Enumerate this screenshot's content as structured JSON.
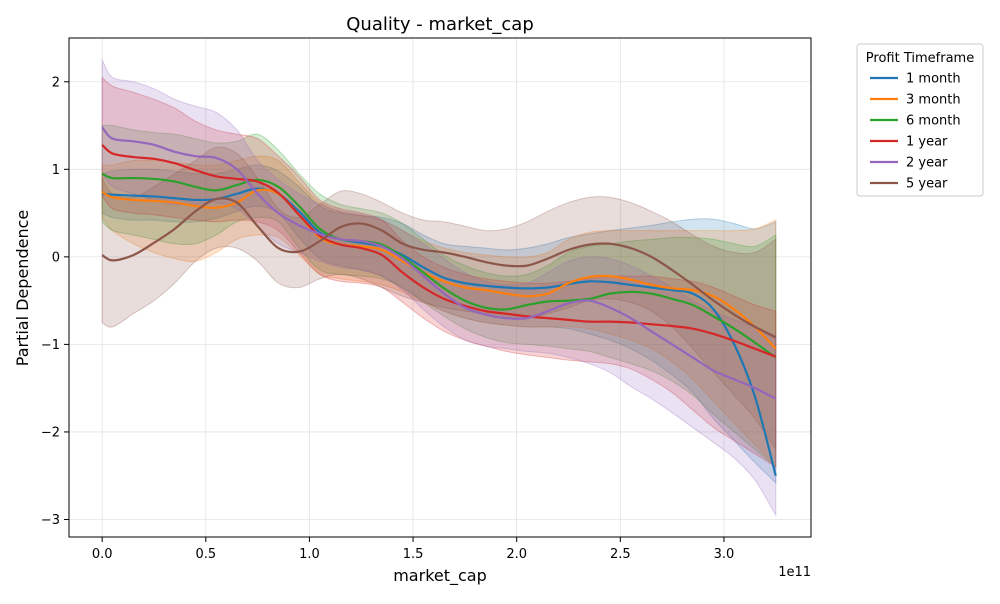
{
  "chart_data": {
    "type": "line",
    "title": "Quality - market_cap",
    "xlabel": "market_cap",
    "ylabel": "Partial Dependence",
    "x_offset_label": "1e11",
    "xlim": [
      -0.16,
      3.42
    ],
    "ylim": [
      -3.2,
      2.5
    ],
    "x_ticks": [
      0.0,
      0.5,
      1.0,
      1.5,
      2.0,
      2.5,
      3.0
    ],
    "x_tick_labels": [
      "0.0",
      "0.5",
      "1.0",
      "1.5",
      "2.0",
      "2.5",
      "3.0"
    ],
    "y_ticks": [
      -3,
      -2,
      -1,
      0,
      1,
      2
    ],
    "y_tick_labels": [
      "−3",
      "−2",
      "−1",
      "0",
      "1",
      "2"
    ],
    "grid": true,
    "legend_title": "Profit Timeframe",
    "legend_position": "outside-right",
    "x": [
      0.0,
      0.05,
      0.15,
      0.25,
      0.35,
      0.45,
      0.55,
      0.65,
      0.75,
      0.85,
      0.95,
      1.05,
      1.15,
      1.25,
      1.35,
      1.45,
      1.55,
      1.65,
      1.75,
      1.85,
      1.95,
      2.05,
      2.15,
      2.25,
      2.35,
      2.45,
      2.55,
      2.65,
      2.75,
      2.85,
      2.95,
      3.05,
      3.15,
      3.25
    ],
    "series": [
      {
        "name": "1 month",
        "color": "#1f77b4",
        "values": [
          0.72,
          0.71,
          0.7,
          0.69,
          0.67,
          0.65,
          0.66,
          0.72,
          0.78,
          0.72,
          0.52,
          0.28,
          0.2,
          0.16,
          0.12,
          0.02,
          -0.12,
          -0.24,
          -0.3,
          -0.33,
          -0.35,
          -0.36,
          -0.35,
          -0.31,
          -0.28,
          -0.29,
          -0.32,
          -0.35,
          -0.38,
          -0.42,
          -0.6,
          -1.0,
          -1.6,
          -2.5
        ],
        "lower": [
          0.5,
          0.45,
          0.42,
          0.42,
          0.4,
          0.4,
          0.44,
          0.52,
          0.58,
          0.5,
          0.22,
          -0.02,
          -0.1,
          -0.15,
          -0.22,
          -0.36,
          -0.5,
          -0.62,
          -0.7,
          -0.75,
          -0.78,
          -0.8,
          -0.8,
          -0.82,
          -0.88,
          -0.95,
          -1.05,
          -1.18,
          -1.35,
          -1.55,
          -1.85,
          -2.1,
          -2.35,
          -2.58
        ],
        "upper": [
          0.95,
          0.98,
          1.0,
          1.0,
          0.98,
          0.95,
          0.95,
          1.0,
          1.05,
          0.98,
          0.8,
          0.58,
          0.5,
          0.47,
          0.45,
          0.38,
          0.25,
          0.15,
          0.12,
          0.1,
          0.08,
          0.1,
          0.15,
          0.22,
          0.26,
          0.3,
          0.33,
          0.36,
          0.4,
          0.43,
          0.43,
          0.38,
          0.32,
          0.4
        ]
      },
      {
        "name": "3 month",
        "color": "#ff7f0e",
        "values": [
          0.74,
          0.68,
          0.65,
          0.64,
          0.62,
          0.58,
          0.56,
          0.62,
          0.76,
          0.72,
          0.48,
          0.22,
          0.14,
          0.12,
          0.08,
          -0.05,
          -0.18,
          -0.28,
          -0.35,
          -0.38,
          -0.42,
          -0.45,
          -0.42,
          -0.3,
          -0.23,
          -0.22,
          -0.26,
          -0.32,
          -0.36,
          -0.38,
          -0.45,
          -0.6,
          -0.8,
          -1.05
        ],
        "lower": [
          0.45,
          0.3,
          0.15,
          0.05,
          -0.02,
          -0.05,
          0.05,
          0.2,
          0.25,
          0.22,
          0.02,
          -0.2,
          -0.25,
          -0.28,
          -0.32,
          -0.4,
          -0.52,
          -0.62,
          -0.7,
          -0.75,
          -0.78,
          -0.8,
          -0.8,
          -0.8,
          -0.82,
          -0.88,
          -0.95,
          -1.05,
          -1.2,
          -1.4,
          -1.65,
          -1.9,
          -2.15,
          -2.4
        ],
        "upper": [
          1.05,
          1.05,
          1.1,
          1.1,
          1.08,
          1.05,
          1.05,
          1.1,
          1.15,
          1.1,
          0.85,
          0.62,
          0.52,
          0.47,
          0.42,
          0.3,
          0.18,
          0.1,
          0.05,
          0.02,
          0.0,
          0.0,
          0.05,
          0.2,
          0.28,
          0.3,
          0.3,
          0.3,
          0.3,
          0.3,
          0.3,
          0.3,
          0.32,
          0.42
        ]
      },
      {
        "name": "6 month",
        "color": "#2ca02c",
        "values": [
          0.95,
          0.9,
          0.9,
          0.89,
          0.86,
          0.8,
          0.76,
          0.82,
          0.88,
          0.8,
          0.58,
          0.32,
          0.2,
          0.18,
          0.14,
          0.0,
          -0.18,
          -0.36,
          -0.5,
          -0.58,
          -0.6,
          -0.55,
          -0.51,
          -0.5,
          -0.48,
          -0.42,
          -0.4,
          -0.42,
          -0.48,
          -0.55,
          -0.68,
          -0.82,
          -0.98,
          -1.15
        ],
        "lower": [
          0.4,
          0.3,
          0.25,
          0.2,
          0.15,
          0.15,
          0.25,
          0.4,
          0.45,
          0.4,
          0.1,
          -0.15,
          -0.2,
          -0.22,
          -0.25,
          -0.35,
          -0.52,
          -0.68,
          -0.82,
          -0.92,
          -0.98,
          -1.0,
          -1.02,
          -1.05,
          -1.08,
          -1.15,
          -1.22,
          -1.3,
          -1.42,
          -1.58,
          -1.8,
          -2.0,
          -2.2,
          -2.4
        ],
        "upper": [
          1.5,
          1.5,
          1.45,
          1.42,
          1.4,
          1.35,
          1.3,
          1.32,
          1.4,
          1.22,
          0.95,
          0.72,
          0.6,
          0.55,
          0.5,
          0.38,
          0.2,
          0.02,
          -0.1,
          -0.18,
          -0.22,
          -0.2,
          -0.1,
          0.05,
          0.12,
          0.15,
          0.18,
          0.2,
          0.22,
          0.22,
          0.2,
          0.15,
          0.12,
          0.25
        ]
      },
      {
        "name": "1 year",
        "color": "#d62728",
        "values": [
          1.28,
          1.18,
          1.14,
          1.12,
          1.07,
          0.99,
          0.92,
          0.89,
          0.86,
          0.73,
          0.48,
          0.24,
          0.14,
          0.1,
          0.02,
          -0.18,
          -0.35,
          -0.48,
          -0.56,
          -0.62,
          -0.65,
          -0.68,
          -0.7,
          -0.72,
          -0.74,
          -0.74,
          -0.75,
          -0.77,
          -0.79,
          -0.82,
          -0.88,
          -0.96,
          -1.05,
          -1.14
        ],
        "lower": [
          0.7,
          0.55,
          0.5,
          0.48,
          0.45,
          0.42,
          0.4,
          0.42,
          0.4,
          0.3,
          0.05,
          -0.2,
          -0.28,
          -0.3,
          -0.35,
          -0.52,
          -0.7,
          -0.85,
          -0.95,
          -1.02,
          -1.08,
          -1.12,
          -1.15,
          -1.18,
          -1.2,
          -1.22,
          -1.28,
          -1.4,
          -1.55,
          -1.75,
          -1.95,
          -2.1,
          -2.25,
          -2.4
        ],
        "upper": [
          2.05,
          1.95,
          1.88,
          1.8,
          1.7,
          1.55,
          1.45,
          1.4,
          1.35,
          1.15,
          0.92,
          0.65,
          0.55,
          0.5,
          0.42,
          0.18,
          0.0,
          -0.12,
          -0.2,
          -0.25,
          -0.28,
          -0.3,
          -0.3,
          -0.28,
          -0.25,
          -0.22,
          -0.22,
          -0.22,
          -0.25,
          -0.28,
          -0.35,
          -0.45,
          -0.55,
          -0.62
        ]
      },
      {
        "name": "2 year",
        "color": "#9467bd",
        "values": [
          1.48,
          1.35,
          1.32,
          1.28,
          1.2,
          1.15,
          1.13,
          1.0,
          0.72,
          0.5,
          0.36,
          0.26,
          0.2,
          0.18,
          0.12,
          -0.02,
          -0.22,
          -0.42,
          -0.58,
          -0.66,
          -0.7,
          -0.7,
          -0.62,
          -0.53,
          -0.5,
          -0.58,
          -0.7,
          -0.85,
          -1.0,
          -1.15,
          -1.3,
          -1.4,
          -1.5,
          -1.62
        ],
        "lower": [
          0.95,
          0.8,
          0.72,
          0.65,
          0.6,
          0.6,
          0.62,
          0.55,
          0.35,
          0.15,
          0.05,
          -0.05,
          -0.12,
          -0.15,
          -0.22,
          -0.38,
          -0.6,
          -0.8,
          -0.95,
          -1.02,
          -1.05,
          -1.08,
          -1.1,
          -1.15,
          -1.22,
          -1.32,
          -1.48,
          -1.62,
          -1.78,
          -1.95,
          -2.12,
          -2.3,
          -2.55,
          -2.95
        ],
        "upper": [
          2.25,
          2.05,
          2.0,
          1.92,
          1.8,
          1.72,
          1.65,
          1.45,
          1.1,
          0.88,
          0.72,
          0.6,
          0.52,
          0.48,
          0.42,
          0.3,
          0.15,
          -0.02,
          -0.18,
          -0.28,
          -0.32,
          -0.3,
          -0.18,
          -0.05,
          0.0,
          -0.02,
          -0.1,
          -0.22,
          -0.35,
          -0.5,
          -0.62,
          -0.72,
          -0.8,
          -0.9
        ]
      },
      {
        "name": "5 year",
        "color": "#8c564b",
        "values": [
          0.02,
          -0.04,
          0.02,
          0.16,
          0.32,
          0.52,
          0.66,
          0.62,
          0.35,
          0.1,
          0.06,
          0.18,
          0.34,
          0.38,
          0.3,
          0.15,
          0.08,
          0.05,
          0.0,
          -0.06,
          -0.1,
          -0.1,
          -0.02,
          0.08,
          0.14,
          0.15,
          0.1,
          0.0,
          -0.15,
          -0.32,
          -0.5,
          -0.66,
          -0.8,
          -0.92
        ],
        "lower": [
          -0.75,
          -0.8,
          -0.65,
          -0.5,
          -0.3,
          -0.05,
          0.1,
          0.1,
          -0.05,
          -0.3,
          -0.35,
          -0.25,
          -0.2,
          -0.25,
          -0.35,
          -0.45,
          -0.52,
          -0.58,
          -0.62,
          -0.65,
          -0.7,
          -0.7,
          -0.65,
          -0.58,
          -0.5,
          -0.48,
          -0.52,
          -0.62,
          -0.8,
          -1.05,
          -1.32,
          -1.58,
          -1.85,
          -2.2
        ],
        "upper": [
          0.9,
          0.72,
          0.68,
          0.8,
          0.95,
          1.1,
          1.25,
          1.18,
          0.9,
          0.55,
          0.45,
          0.6,
          0.75,
          0.72,
          0.62,
          0.5,
          0.42,
          0.4,
          0.35,
          0.3,
          0.32,
          0.4,
          0.52,
          0.62,
          0.68,
          0.68,
          0.62,
          0.52,
          0.4,
          0.25,
          0.12,
          0.05,
          0.05,
          0.2
        ]
      }
    ]
  }
}
